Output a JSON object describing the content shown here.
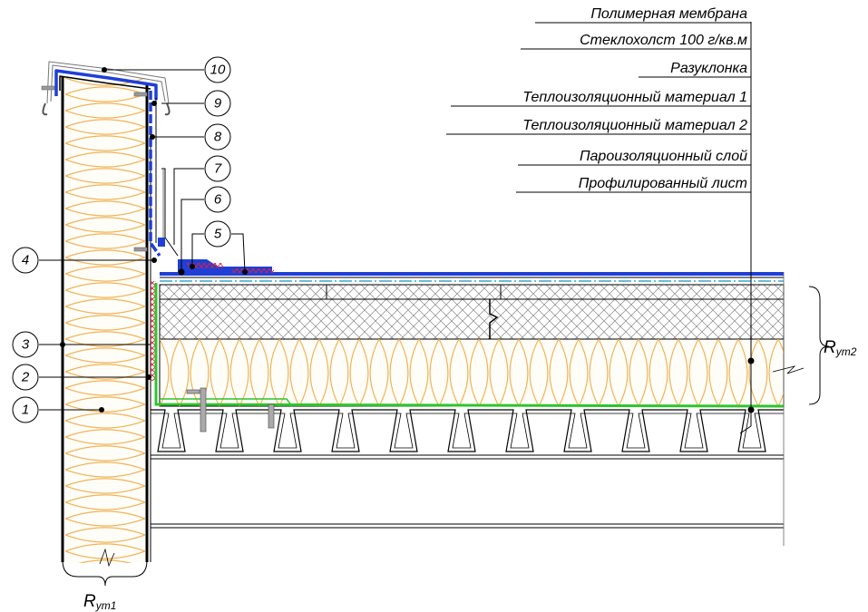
{
  "layers": [
    "Полимерная мембрана",
    "Стеклохолст 100 г/кв.м",
    "Разуклонка",
    "Теплоизоляционный материал 1",
    "Теплоизоляционный материал 2",
    "Пароизоляционный слой",
    "Профилированный лист"
  ],
  "markers": [
    "1",
    "2",
    "3",
    "4",
    "5",
    "6",
    "7",
    "8",
    "9",
    "10"
  ],
  "resistance": {
    "wall_main": "R",
    "wall_sub": "ут1",
    "roof_main": "R",
    "roof_sub": "ут2"
  },
  "colors": {
    "membrane": "#1f3fd6",
    "insulation": "#f0b45a",
    "vapor_barrier": "#2fc42f",
    "sealant": "#e0203a",
    "glass_fleece": "#33aacc"
  }
}
